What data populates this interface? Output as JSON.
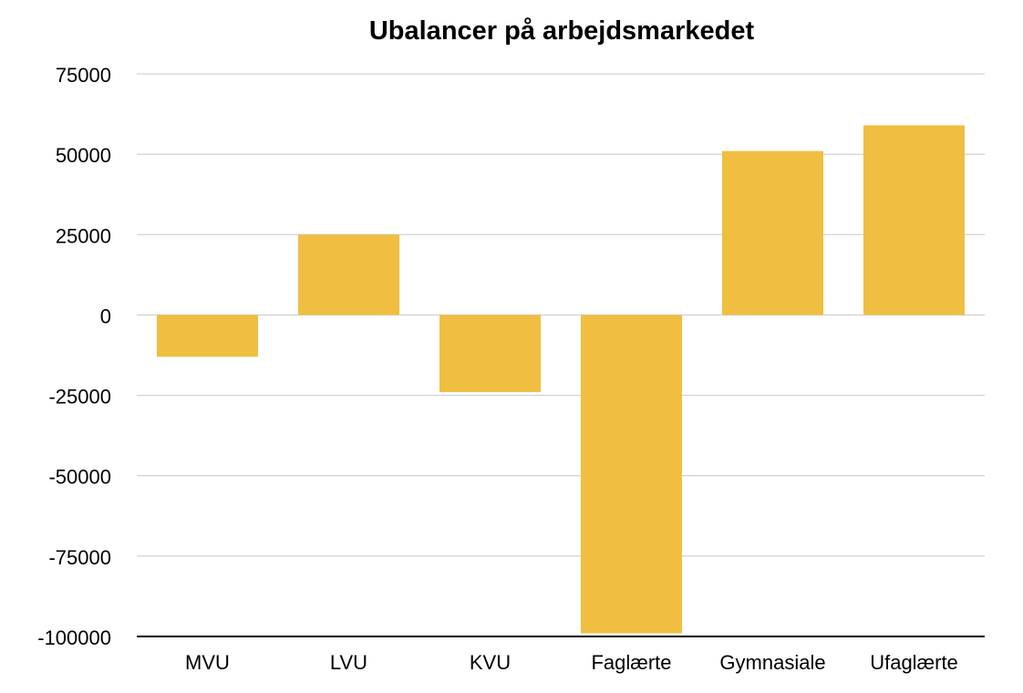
{
  "chart_data": {
    "type": "bar",
    "title": "Ubalancer på arbejdsmarkedet",
    "xlabel": "",
    "ylabel": "",
    "categories": [
      "MVU",
      "LVU",
      "KVU",
      "Faglærte",
      "Gymnasiale",
      "Ufaglærte"
    ],
    "values": [
      -13000,
      25000,
      -24000,
      -99000,
      51000,
      59000
    ],
    "ylim": [
      -100000,
      75000
    ],
    "yticks": [
      75000,
      50000,
      25000,
      0,
      -25000,
      -50000,
      -75000,
      -100000
    ],
    "grid": true,
    "legend": "none",
    "bar_color": "#F0BE41",
    "grid_color": "#C8C8C8",
    "axis_color": "#000000"
  }
}
